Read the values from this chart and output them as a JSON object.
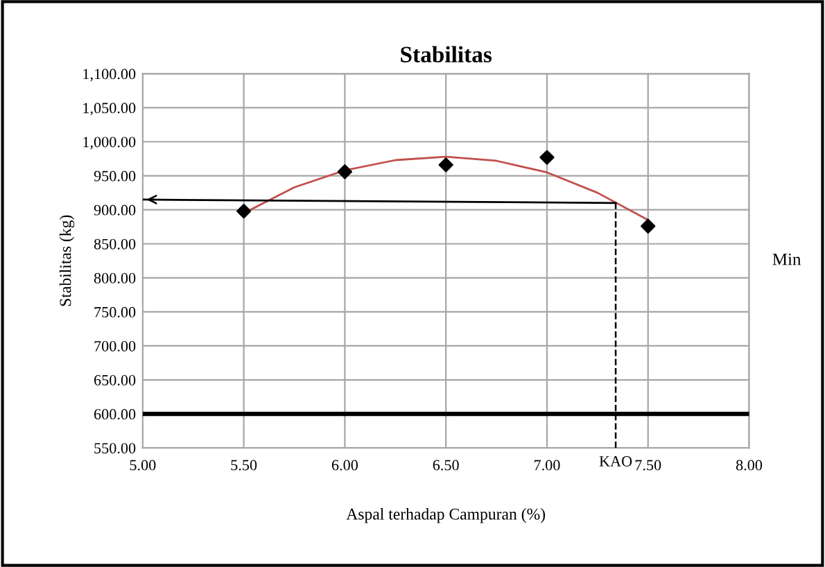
{
  "chart_data": {
    "type": "scatter",
    "title": "Stabilitas",
    "xlabel": "Aspal terhadap Campuran (%)",
    "ylabel": "Stabilitas (kg)",
    "series": [
      {
        "color": "#000000",
        "marker": "diamond",
        "x": [
          5.5,
          6.0,
          6.5,
          7.0,
          7.5
        ],
        "values": [
          898,
          956,
          966,
          977,
          876
        ]
      },
      {
        "type": "line",
        "color": "#c0504d",
        "marker": "none",
        "x": [
          5.5,
          5.75,
          6.0,
          6.25,
          6.5,
          6.75,
          7.0,
          7.25,
          7.5
        ],
        "values": [
          895,
          933,
          958,
          973,
          978,
          972,
          955,
          925,
          885
        ]
      },
      {
        "type": "line",
        "color": "#000000",
        "marker": "none",
        "x": [
          5.0,
          7.34
        ],
        "values": [
          915,
          910
        ]
      }
    ],
    "annotations": [
      {
        "text": "KAO",
        "x": 7.34,
        "y": 910
      }
    ],
    "ref_lines": [
      {
        "axis": "y",
        "value": 600,
        "label": "Min",
        "color": "#000000",
        "line_style": "solid"
      }
    ],
    "xlim": [
      5.0,
      8.0
    ],
    "xticks": [
      {
        "value": 5.0,
        "label": "5.00"
      },
      {
        "value": 5.5,
        "label": "5.50"
      },
      {
        "value": 6.0,
        "label": "6.00"
      },
      {
        "value": 6.5,
        "label": "6.50"
      },
      {
        "value": 7.0,
        "label": "7.00"
      },
      {
        "value": 7.5,
        "label": "7.50"
      },
      {
        "value": 8.0,
        "label": "8.00"
      }
    ],
    "ylim": [
      550,
      1100
    ],
    "yticks": [
      {
        "value": 550,
        "label": "550.00"
      },
      {
        "value": 600,
        "label": "600.00"
      },
      {
        "value": 650,
        "label": "650.00"
      },
      {
        "value": 700,
        "label": "700.00"
      },
      {
        "value": 750,
        "label": "750.00"
      },
      {
        "value": 800,
        "label": "800.00"
      },
      {
        "value": 850,
        "label": "850.00"
      },
      {
        "value": 900,
        "label": "900.00"
      },
      {
        "value": 950,
        "label": "950.00"
      },
      {
        "value": 1000,
        "label": "1,000.00"
      },
      {
        "value": 1050,
        "label": "1,050.00"
      },
      {
        "value": 1100,
        "label": "1,100.00"
      }
    ],
    "grid": true
  }
}
